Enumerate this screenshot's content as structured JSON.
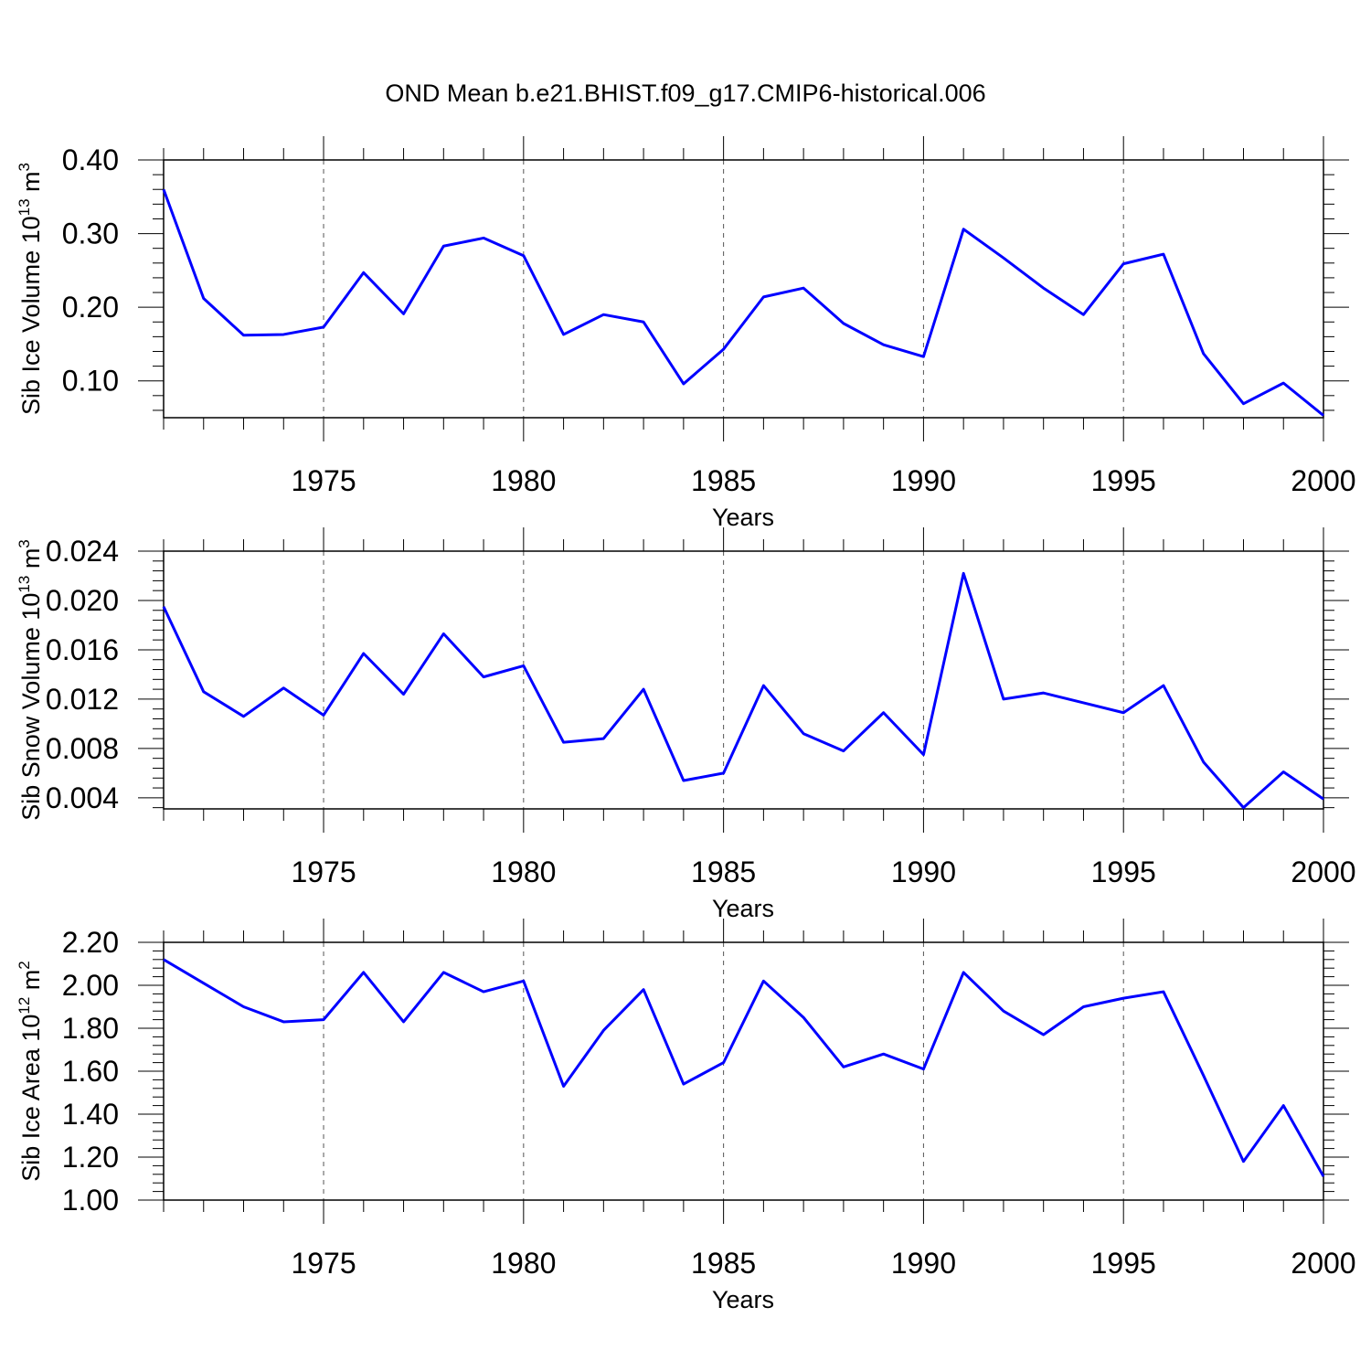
{
  "page": {
    "title": "OND Mean b.e21.BHIST.f09_g17.CMIP6-historical.006"
  },
  "style": {
    "line_color": "#0000ff",
    "axis_color": "#000000",
    "grid_color": "#555555"
  },
  "chart_data": [
    {
      "type": "line",
      "title": "OND Mean b.e21.BHIST.f09_g17.CMIP6-historical.006",
      "xlabel": "Years",
      "ylabel_base": "Sib Ice Volume 10",
      "ylabel_exp": "13",
      "ylabel_unit": " m",
      "ylabel_unit_exp": "3",
      "xlim": [
        1971,
        2000
      ],
      "ylim": [
        0.05,
        0.4
      ],
      "yticks": [
        0.1,
        0.2,
        0.3,
        0.4
      ],
      "yticklabels": [
        "0.10",
        "0.20",
        "0.30",
        "0.40"
      ],
      "xticks": [
        1975,
        1980,
        1985,
        1990,
        1995,
        2000
      ],
      "xticklabels": [
        "1975",
        "1980",
        "1985",
        "1990",
        "1995",
        "2000"
      ],
      "grid_x": true,
      "x": [
        1971,
        1972,
        1973,
        1974,
        1975,
        1976,
        1977,
        1978,
        1979,
        1980,
        1981,
        1982,
        1983,
        1984,
        1985,
        1986,
        1987,
        1988,
        1989,
        1990,
        1991,
        1992,
        1993,
        1994,
        1995,
        1996,
        1997,
        1998,
        1999,
        2000
      ],
      "series": [
        {
          "values": [
            0.36,
            0.212,
            0.162,
            0.163,
            0.173,
            0.247,
            0.191,
            0.283,
            0.294,
            0.27,
            0.163,
            0.19,
            0.18,
            0.096,
            0.143,
            0.214,
            0.226,
            0.178,
            0.149,
            0.133,
            0.306,
            0.267,
            0.226,
            0.19,
            0.259,
            0.272,
            0.137,
            0.069,
            0.097,
            0.053
          ]
        }
      ]
    },
    {
      "type": "line",
      "xlabel": "Years",
      "ylabel_base": "Sib Snow Volume 10",
      "ylabel_exp": "13",
      "ylabel_unit": " m",
      "ylabel_unit_exp": "3",
      "xlim": [
        1971,
        2000
      ],
      "ylim": [
        0.0031,
        0.024
      ],
      "yticks": [
        0.004,
        0.008,
        0.012,
        0.016,
        0.02,
        0.024
      ],
      "yticklabels": [
        "0.004",
        "0.008",
        "0.012",
        "0.016",
        "0.020",
        "0.024"
      ],
      "xticks": [
        1975,
        1980,
        1985,
        1990,
        1995,
        2000
      ],
      "xticklabels": [
        "1975",
        "1980",
        "1985",
        "1990",
        "1995",
        "2000"
      ],
      "grid_x": true,
      "x": [
        1971,
        1972,
        1973,
        1974,
        1975,
        1976,
        1977,
        1978,
        1979,
        1980,
        1981,
        1982,
        1983,
        1984,
        1985,
        1986,
        1987,
        1988,
        1989,
        1990,
        1991,
        1992,
        1993,
        1994,
        1995,
        1996,
        1997,
        1998,
        1999,
        2000
      ],
      "series": [
        {
          "values": [
            0.0195,
            0.0126,
            0.0106,
            0.0129,
            0.0107,
            0.0157,
            0.0124,
            0.0173,
            0.0138,
            0.0147,
            0.0085,
            0.0088,
            0.0128,
            0.0054,
            0.006,
            0.0131,
            0.0092,
            0.0078,
            0.0109,
            0.0075,
            0.0222,
            0.012,
            0.0125,
            0.0117,
            0.0109,
            0.0131,
            0.0069,
            0.0032,
            0.0061,
            0.0039
          ]
        }
      ]
    },
    {
      "type": "line",
      "xlabel": "Years",
      "ylabel_base": "Sib Ice Area 10",
      "ylabel_exp": "12",
      "ylabel_unit": " m",
      "ylabel_unit_exp": "2",
      "xlim": [
        1971,
        2000
      ],
      "ylim": [
        1.0,
        2.2
      ],
      "yticks": [
        1.0,
        1.2,
        1.4,
        1.6,
        1.8,
        2.0,
        2.2
      ],
      "yticklabels": [
        "1.00",
        "1.20",
        "1.40",
        "1.60",
        "1.80",
        "2.00",
        "2.20"
      ],
      "xticks": [
        1975,
        1980,
        1985,
        1990,
        1995,
        2000
      ],
      "xticklabels": [
        "1975",
        "1980",
        "1985",
        "1990",
        "1995",
        "2000"
      ],
      "grid_x": true,
      "x": [
        1971,
        1972,
        1973,
        1974,
        1975,
        1976,
        1977,
        1978,
        1979,
        1980,
        1981,
        1982,
        1983,
        1984,
        1985,
        1986,
        1987,
        1988,
        1989,
        1990,
        1991,
        1992,
        1993,
        1994,
        1995,
        1996,
        1997,
        1998,
        1999,
        2000
      ],
      "series": [
        {
          "values": [
            2.12,
            2.01,
            1.9,
            1.83,
            1.84,
            2.06,
            1.83,
            2.06,
            1.97,
            2.02,
            1.53,
            1.79,
            1.98,
            1.54,
            1.64,
            2.02,
            1.85,
            1.62,
            1.68,
            1.61,
            2.06,
            1.88,
            1.77,
            1.9,
            1.94,
            1.97,
            1.58,
            1.18,
            1.44,
            1.11
          ]
        }
      ]
    }
  ]
}
